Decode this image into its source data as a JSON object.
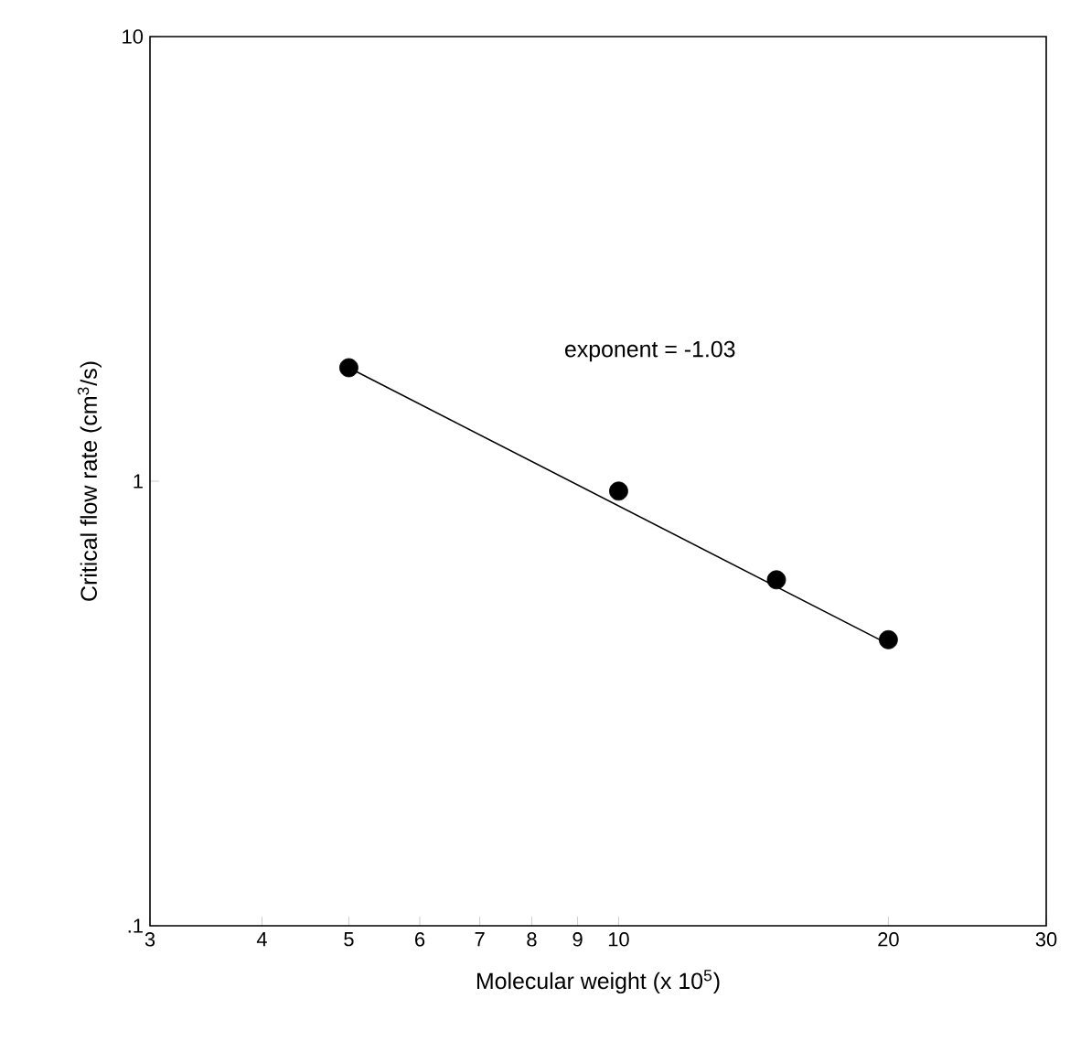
{
  "chart_data": {
    "type": "scatter",
    "xlabel": "Molecular weight (x 10$^{5}$)",
    "ylabel": "Critical flow rate (cm$^{3}$/s)",
    "log": "xy",
    "grid": false,
    "xlim": [
      3,
      30
    ],
    "xticks": [
      3,
      4,
      5,
      6,
      7,
      8,
      9,
      10,
      20,
      30
    ],
    "ylim": [
      0.1,
      10
    ],
    "yticks": [
      {
        "value": 0.1,
        "label": ".1"
      },
      1,
      10
    ],
    "annotations": [
      "exponent = -1.03"
    ],
    "series": [
      {
        "color": "#000000",
        "marker": "circle",
        "x": [
          5,
          10,
          15,
          20
        ],
        "values": [
          1.8,
          0.95,
          0.6,
          0.44
        ]
      },
      {
        "type": "line",
        "color": "#000000",
        "x": [
          5,
          20
        ],
        "values": [
          1.8,
          0.43
        ]
      }
    ]
  }
}
